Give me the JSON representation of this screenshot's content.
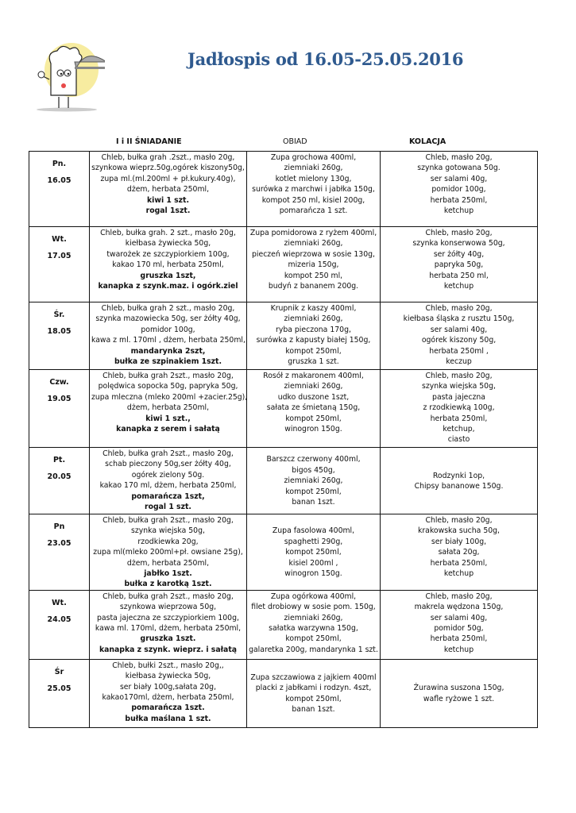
{
  "title": "Jadłospis  od 16.05-25.05.2016",
  "columns": {
    "breakfast": "I i II ŚNIADANIE",
    "lunch": "OBIAD",
    "dinner": "KOLACJA"
  },
  "rows": [
    {
      "day": "Pn.",
      "date": "16.05",
      "breakfast": [
        {
          "t": "Chleb, bułka grah .2szt., masło 20g,"
        },
        {
          "t": "szynkowa wieprz.50g,ogórek kiszony50g,"
        },
        {
          "t": "zupa ml.(ml.200ml + pł.kukury.40g),"
        },
        {
          "t": "dżem, herbata 250ml,"
        },
        {
          "t": "kiwi 1 szt.",
          "b": true
        },
        {
          "t": "rogal 1szt.",
          "b": true
        }
      ],
      "lunch": [
        {
          "t": "Zupa  grochowa 400ml,"
        },
        {
          "t": "ziemniaki 260g,"
        },
        {
          "t": "kotlet mielony 130g,"
        },
        {
          "t": "surówka z marchwi i jabłka 150g,"
        },
        {
          "t": "kompot 250 ml,   kisiel 200g,"
        },
        {
          "t": "pomarańcza 1 szt."
        }
      ],
      "dinner": [
        {
          "t": "Chleb, masło 20g,"
        },
        {
          "t": "szynka gotowana 50g."
        },
        {
          "t": "ser salami 40g,"
        },
        {
          "t": "pomidor  100g,"
        },
        {
          "t": "herbata 250ml,"
        },
        {
          "t": "ketchup"
        }
      ]
    },
    {
      "day": "Wt.",
      "date": "17.05",
      "breakfast": [
        {
          "t": "Chleb, bułka grah. 2 szt., masło 20g,"
        },
        {
          "t": "kiełbasa żywiecka  50g,"
        },
        {
          "t": "twarożek ze szczypiorkiem 100g,"
        },
        {
          "t": "kakao 170 ml, herbata 250ml,"
        },
        {
          "t": "gruszka 1szt,",
          "b": true
        },
        {
          "t": "kanapka z szynk.maz. i ogórk.ziel",
          "b": true
        }
      ],
      "lunch": [
        {
          "t": "Zupa pomidorowa z ryżem 400ml,"
        },
        {
          "t": "ziemniaki 260g,"
        },
        {
          "t": "pieczeń wieprzowa w sosie 130g,"
        },
        {
          "t": "mizeria 150g,"
        },
        {
          "t": "kompot 250 ml,"
        },
        {
          "t": "budyń  z bananem 200g."
        }
      ],
      "dinner": [
        {
          "t": "Chleb, masło 20g,"
        },
        {
          "t": "szynka konserwowa 50g,"
        },
        {
          "t": "ser żółty 40g,"
        },
        {
          "t": "papryka 50g,"
        },
        {
          "t": "herbata 250 ml,"
        },
        {
          "t": "ketchup"
        }
      ]
    },
    {
      "day": "Śr.",
      "date": "18.05",
      "breakfast": [
        {
          "t": "Chleb, bułka grah 2 szt., masło 20g,"
        },
        {
          "t": "szynka  mazowiecka 50g, ser żółty 40g,"
        },
        {
          "t": "pomidor  100g,"
        },
        {
          "t": "kawa z ml. 170ml , dżem, herbata 250ml,"
        },
        {
          "t": "mandarynka  2szt,",
          "b": true
        },
        {
          "t": "bułka ze szpinakiem 1szt.",
          "b": true
        }
      ],
      "lunch": [
        {
          "t": "Krupnik z kaszy 400ml,"
        },
        {
          "t": "ziemniaki 260g,"
        },
        {
          "t": "ryba pieczona 170g,"
        },
        {
          "t": "surówka z kapusty białej 150g,"
        },
        {
          "t": "kompot 250ml,"
        },
        {
          "t": "gruszka 1 szt."
        }
      ],
      "dinner": [
        {
          "t": "Chleb,  masło 20g,"
        },
        {
          "t": "kiełbasa śląska z rusztu 150g,"
        },
        {
          "t": "ser  salami 40g,"
        },
        {
          "t": "ogórek kiszony 50g,"
        },
        {
          "t": "herbata 250ml ,"
        },
        {
          "t": "keczup"
        }
      ]
    },
    {
      "day": "Czw.",
      "date": "19.05",
      "breakfast": [
        {
          "t": "Chleb, bułka grah 2szt., masło  20g,"
        },
        {
          "t": "polędwica sopocka 50g, papryka 50g,"
        },
        {
          "t": "zupa mleczna (mleko 200ml +zacier.25g),"
        },
        {
          "t": "dżem,  herbata 250ml,"
        },
        {
          "t": "kiwi 1 szt.,",
          "b": true
        },
        {
          "t": "kanapka z serem i sałatą",
          "b": true
        }
      ],
      "lunch": [
        {
          "t": "Rosół z makaronem  400ml,"
        },
        {
          "t": "ziemniaki 260g,"
        },
        {
          "t": "udko duszone 1szt,"
        },
        {
          "t": "sałata ze śmietaną 150g,"
        },
        {
          "t": "kompot 250ml,"
        },
        {
          "t": "winogron 150g."
        }
      ],
      "dinner": [
        {
          "t": "Chleb, masło 20g,"
        },
        {
          "t": "szynka wiejska 50g,"
        },
        {
          "t": "pasta jajeczna"
        },
        {
          "t": "z  rzodkiewką 100g,"
        },
        {
          "t": "herbata 250ml,"
        },
        {
          "t": "ketchup,"
        },
        {
          "t": "ciasto"
        }
      ]
    },
    {
      "day": "Pt.",
      "date": "20.05",
      "breakfast": [
        {
          "t": "Chleb, bułka grah  2szt., masło 20g,"
        },
        {
          "t": "schab pieczony 50g,ser żółty 40g,"
        },
        {
          "t": "ogórek zielony 50g."
        },
        {
          "t": "kakao 170 ml, dżem, herbata 250ml,"
        },
        {
          "t": "pomarańcza 1szt,",
          "b": true
        },
        {
          "t": "rogal 1 szt.",
          "b": true
        }
      ],
      "lunch": [
        {
          "t": "Barszcz czerwony  400ml,"
        },
        {
          "t": "bigos  450g,"
        },
        {
          "t": "ziemniaki 260g,"
        },
        {
          "t": "kompot 250ml,"
        },
        {
          "t": "banan 1szt."
        }
      ],
      "dinner": [
        {
          "t": "Rodzynki 1op,"
        },
        {
          "t": "Chipsy bananowe 150g."
        }
      ]
    },
    {
      "day": "Pn",
      "date": "23.05",
      "breakfast": [
        {
          "t": "Chleb, bułka grah 2szt., masło 20g,"
        },
        {
          "t": "szynka wiejska 50g,"
        },
        {
          "t": "rzodkiewka 20g,"
        },
        {
          "t": "zupa ml(mleko 200ml+pł. owsiane 25g),"
        },
        {
          "t": "dżem, herbata 250ml,"
        },
        {
          "t": "jabłko 1szt.",
          "b": true
        },
        {
          "t": "bułka z karotką 1szt.",
          "b": true
        }
      ],
      "lunch": [
        {
          "t": "Zupa fasolowa  400ml,"
        },
        {
          "t": "spaghetti 290g,"
        },
        {
          "t": "kompot 250ml,"
        },
        {
          "t": "kisiel 200ml ,"
        },
        {
          "t": "winogron 150g."
        }
      ],
      "dinner": [
        {
          "t": "Chleb, masło 20g,"
        },
        {
          "t": "krakowska sucha 50g,"
        },
        {
          "t": "ser biały  100g,"
        },
        {
          "t": "sałata 20g,"
        },
        {
          "t": "herbata 250ml,"
        },
        {
          "t": "ketchup"
        }
      ]
    },
    {
      "day": "Wt.",
      "date": "24.05",
      "breakfast": [
        {
          "t": "Chleb, bułka grah 2szt., masło 20g,"
        },
        {
          "t": "szynkowa  wieprzowa  50g,"
        },
        {
          "t": "pasta jajeczna ze szczypiorkiem 100g,"
        },
        {
          "t": "kawa ml. 170ml, dżem,  herbata 250ml,"
        },
        {
          "t": "gruszka 1szt.",
          "b": true
        },
        {
          "t": "kanapka z szynk. wieprz. i sałatą",
          "b": true
        }
      ],
      "lunch": [
        {
          "t": "Zupa ogórkowa  400ml,"
        },
        {
          "t": "filet drobiowy w sosie pom. 150g,"
        },
        {
          "t": "ziemniaki 260g,"
        },
        {
          "t": "sałatka warzywna  150g,"
        },
        {
          "t": "kompot 250ml,"
        },
        {
          "t": "galaretka 200g, mandarynka 1 szt."
        }
      ],
      "dinner": [
        {
          "t": "Chleb, masło 20g,"
        },
        {
          "t": "makrela wędzona 150g,"
        },
        {
          "t": "ser salami 40g,"
        },
        {
          "t": "pomidor 50g,"
        },
        {
          "t": "herbata 250ml,"
        },
        {
          "t": "ketchup"
        }
      ]
    },
    {
      "day": "Śr",
      "date": "25.05",
      "breakfast": [
        {
          "t": "Chleb, bułki 2szt., masło 20g,,"
        },
        {
          "t": "kiełbasa żywiecka 50g,"
        },
        {
          "t": "ser biały 100g,sałata 20g,"
        },
        {
          "t": "kakao170ml, dżem, herbata 250ml,"
        },
        {
          "t": "pomarańcza 1szt.",
          "b": true
        },
        {
          "t": "bułka maślana 1 szt.",
          "b": true
        }
      ],
      "lunch": [
        {
          "t": "Zupa  szczawiowa z jajkiem  400ml"
        },
        {
          "t": "placki z jabłkami i rodzyn. 4szt,"
        },
        {
          "t": "kompot 250ml,"
        },
        {
          "t": "banan  1szt."
        }
      ],
      "dinner": [
        {
          "t": "Żurawina suszona 150g,"
        },
        {
          "t": "wafle ryżowe  1 szt."
        }
      ]
    }
  ],
  "colors": {
    "title": "#2f5a8f",
    "logo_circle": "#f7eca0"
  }
}
